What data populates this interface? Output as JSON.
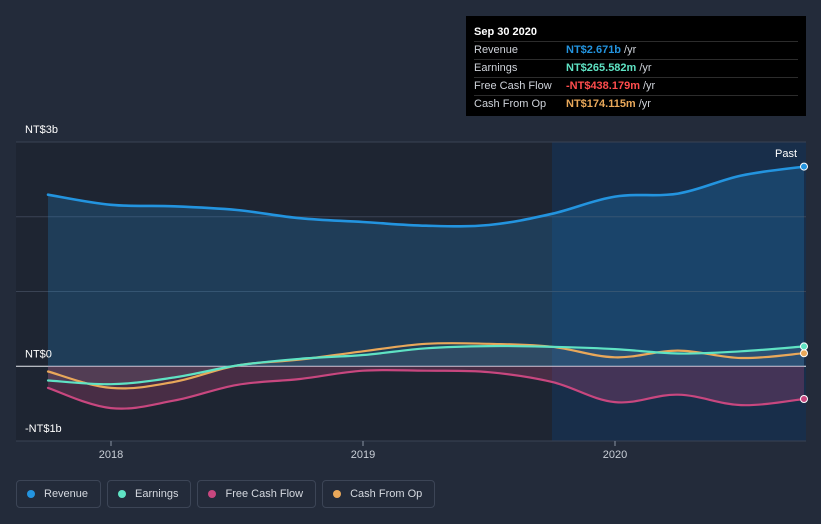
{
  "colors": {
    "background": "#232b3a",
    "revenue": "#2394df",
    "earnings": "#5fe3c4",
    "free_cash_flow": "#c8477f",
    "cash_from_op": "#e9a85a",
    "tooltip_fcf": "#ff4d4d"
  },
  "tooltip": {
    "date": "Sep 30 2020",
    "rows": [
      {
        "label": "Revenue",
        "value": "NT$2.671b",
        "unit": "/yr",
        "color": "#2394df"
      },
      {
        "label": "Earnings",
        "value": "NT$265.582m",
        "unit": "/yr",
        "color": "#5fe3c4"
      },
      {
        "label": "Free Cash Flow",
        "value": "-NT$438.179m",
        "unit": "/yr",
        "color": "#ff4d4d"
      },
      {
        "label": "Cash From Op",
        "value": "NT$174.115m",
        "unit": "/yr",
        "color": "#e9a85a"
      }
    ]
  },
  "legend": [
    {
      "label": "Revenue",
      "color": "#2394df"
    },
    {
      "label": "Earnings",
      "color": "#5fe3c4"
    },
    {
      "label": "Free Cash Flow",
      "color": "#c8477f"
    },
    {
      "label": "Cash From Op",
      "color": "#e9a85a"
    }
  ],
  "chart_data": {
    "type": "line",
    "title": "",
    "xlabel": "",
    "ylabel": "",
    "ylim": [
      -1000,
      3000
    ],
    "xlim": [
      2017.75,
      2020.75
    ],
    "y_tick_labels": [
      {
        "value": 3000,
        "label": "NT$3b"
      },
      {
        "value": 0,
        "label": "NT$0"
      },
      {
        "value": -1000,
        "label": "-NT$1b"
      }
    ],
    "x_ticks": [
      {
        "value": 2018.0,
        "label": "2018"
      },
      {
        "value": 2019.0,
        "label": "2019"
      },
      {
        "value": 2020.0,
        "label": "2020"
      }
    ],
    "past_label": "Past",
    "past_start": 2019.75,
    "series": [
      {
        "name": "Revenue",
        "key": "revenue",
        "x": [
          2017.75,
          2018.0,
          2018.25,
          2018.5,
          2018.75,
          2019.0,
          2019.25,
          2019.5,
          2019.75,
          2020.0,
          2020.25,
          2020.5,
          2020.75
        ],
        "values": [
          2295,
          2160,
          2140,
          2090,
          1980,
          1930,
          1880,
          1890,
          2040,
          2270,
          2310,
          2550,
          2671
        ]
      },
      {
        "name": "Earnings",
        "key": "earnings",
        "x": [
          2017.75,
          2018.0,
          2018.25,
          2018.5,
          2018.75,
          2019.0,
          2019.25,
          2019.5,
          2019.75,
          2020.0,
          2020.25,
          2020.5,
          2020.75
        ],
        "values": [
          -190,
          -240,
          -150,
          10,
          100,
          150,
          240,
          270,
          260,
          230,
          170,
          200,
          265.582
        ]
      },
      {
        "name": "Free Cash Flow",
        "key": "free_cash_flow",
        "x": [
          2017.75,
          2018.0,
          2018.25,
          2018.5,
          2018.75,
          2019.0,
          2019.25,
          2019.5,
          2019.75,
          2020.0,
          2020.25,
          2020.5,
          2020.75
        ],
        "values": [
          -290,
          -560,
          -460,
          -250,
          -170,
          -60,
          -60,
          -80,
          -210,
          -480,
          -380,
          -520,
          -438.179
        ]
      },
      {
        "name": "Cash From Op",
        "key": "cash_from_op",
        "x": [
          2017.75,
          2018.0,
          2018.25,
          2018.5,
          2018.75,
          2019.0,
          2019.25,
          2019.5,
          2019.75,
          2020.0,
          2020.25,
          2020.5,
          2020.75
        ],
        "values": [
          -70,
          -290,
          -210,
          10,
          90,
          200,
          300,
          300,
          260,
          120,
          210,
          110,
          174.115
        ]
      }
    ]
  }
}
